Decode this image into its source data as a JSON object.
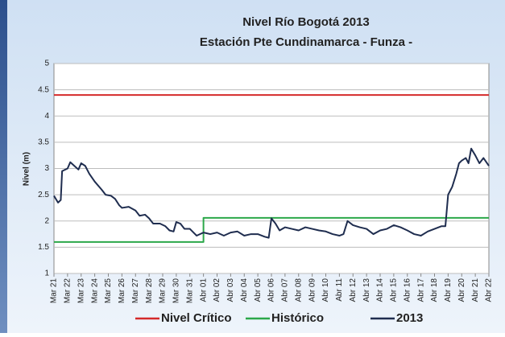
{
  "chart_data": {
    "type": "line",
    "title": "Nivel Río Bogotá 2013",
    "subtitle": "Estación Pte  Cundinamarca - Funza -",
    "ylabel": "Nivel (m)",
    "xlim": [
      0,
      32
    ],
    "xticks": [
      {
        "value": 0,
        "label": "Mar 21"
      },
      {
        "value": 1,
        "label": "Mar 22"
      },
      {
        "value": 2,
        "label": "Mar 23"
      },
      {
        "value": 3,
        "label": "Mar 24"
      },
      {
        "value": 4,
        "label": "Mar 25"
      },
      {
        "value": 5,
        "label": "Mar 26"
      },
      {
        "value": 6,
        "label": "Mar 27"
      },
      {
        "value": 7,
        "label": "Mar 28"
      },
      {
        "value": 8,
        "label": "Mar 29"
      },
      {
        "value": 9,
        "label": "Mar 30"
      },
      {
        "value": 10,
        "label": "Mar 31"
      },
      {
        "value": 11,
        "label": "Abr 01"
      },
      {
        "value": 12,
        "label": "Abr 02"
      },
      {
        "value": 13,
        "label": "Abr 03"
      },
      {
        "value": 14,
        "label": "Abr 04"
      },
      {
        "value": 15,
        "label": "Abr 05"
      },
      {
        "value": 16,
        "label": "Abr 06"
      },
      {
        "value": 17,
        "label": "Abr 07"
      },
      {
        "value": 18,
        "label": "Abr 08"
      },
      {
        "value": 19,
        "label": "Abr 09"
      },
      {
        "value": 20,
        "label": "Abr 10"
      },
      {
        "value": 21,
        "label": "Abr 11"
      },
      {
        "value": 22,
        "label": "Abr 12"
      },
      {
        "value": 23,
        "label": "Abr 13"
      },
      {
        "value": 24,
        "label": "Abr 14"
      },
      {
        "value": 25,
        "label": "Abr 15"
      },
      {
        "value": 26,
        "label": "Abr 16"
      },
      {
        "value": 27,
        "label": "Abr 17"
      },
      {
        "value": 28,
        "label": "Abr 18"
      },
      {
        "value": 29,
        "label": "Abr 19"
      },
      {
        "value": 30,
        "label": "Abr 20"
      },
      {
        "value": 31,
        "label": "Abr 21"
      },
      {
        "value": 32,
        "label": "Abr 22"
      }
    ],
    "ylim": [
      1,
      5
    ],
    "yticks": [
      1,
      1.5,
      2,
      2.5,
      3,
      3.5,
      4,
      4.5,
      5
    ],
    "grid": true,
    "legend": "bottom",
    "series": [
      {
        "name": "Nivel Crítico",
        "color": "#d42a2a",
        "x": [
          0,
          32
        ],
        "values": [
          4.4,
          4.4
        ]
      },
      {
        "name": "Histórico",
        "color": "#2ca84a",
        "x": [
          0,
          11,
          11,
          32
        ],
        "values": [
          1.6,
          1.6,
          2.06,
          2.06
        ]
      },
      {
        "name": "2013",
        "color": "#1f2d4f",
        "x": [
          0,
          0.3,
          0.5,
          0.6,
          1,
          1.2,
          1.5,
          1.8,
          2,
          2.3,
          2.6,
          3,
          3.5,
          3.8,
          4.2,
          4.5,
          4.8,
          5,
          5.5,
          6,
          6.3,
          6.7,
          7,
          7.3,
          7.8,
          8.2,
          8.5,
          8.8,
          9,
          9.3,
          9.6,
          10,
          10.5,
          11,
          11.5,
          12,
          12.5,
          13,
          13.5,
          14,
          14.5,
          15,
          15.5,
          15.8,
          16,
          16.3,
          16.6,
          17,
          17.5,
          18,
          18.5,
          19,
          19.5,
          20,
          20.5,
          21,
          21.3,
          21.6,
          22,
          22.5,
          23,
          23.5,
          24,
          24.5,
          25,
          25.5,
          26,
          26.5,
          27,
          27.5,
          28,
          28.5,
          28.8,
          29,
          29.3,
          29.6,
          29.8,
          30,
          30.3,
          30.5,
          30.7,
          31,
          31.3,
          31.6,
          32
        ],
        "values": [
          2.48,
          2.35,
          2.4,
          2.95,
          3.0,
          3.12,
          3.05,
          2.98,
          3.1,
          3.05,
          2.9,
          2.75,
          2.6,
          2.5,
          2.48,
          2.42,
          2.3,
          2.25,
          2.27,
          2.2,
          2.1,
          2.12,
          2.05,
          1.95,
          1.95,
          1.9,
          1.82,
          1.8,
          1.98,
          1.95,
          1.85,
          1.85,
          1.72,
          1.78,
          1.75,
          1.78,
          1.72,
          1.78,
          1.8,
          1.72,
          1.75,
          1.75,
          1.7,
          1.68,
          2.05,
          1.95,
          1.82,
          1.88,
          1.85,
          1.82,
          1.88,
          1.85,
          1.82,
          1.8,
          1.75,
          1.72,
          1.75,
          2.0,
          1.92,
          1.88,
          1.85,
          1.75,
          1.82,
          1.85,
          1.92,
          1.88,
          1.82,
          1.75,
          1.72,
          1.8,
          1.85,
          1.9,
          1.9,
          2.5,
          2.65,
          2.9,
          3.1,
          3.15,
          3.2,
          3.1,
          3.38,
          3.25,
          3.1,
          3.2,
          3.05
        ]
      }
    ]
  }
}
